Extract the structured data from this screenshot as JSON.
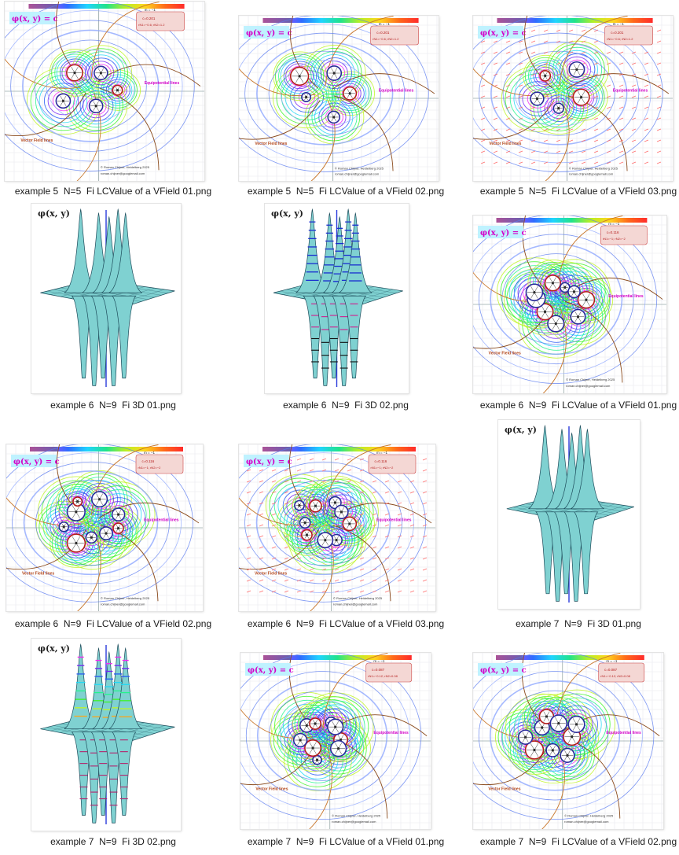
{
  "files": [
    {
      "name": "example 5  N=5  Fi LCValue of a VField 01.png",
      "kind": "field2d",
      "poles": 5,
      "variant": 1,
      "overlay": {
        "title": "φ(x, y) = c",
        "m_label": "m = −1",
        "c_label": "c=0.201",
        "c2_label": "rN1=−0.6; rN2=1.2",
        "vector_label": "Vector Field lines",
        "equi_label": "Equipotential lines",
        "credit": "© Roman Chijner, Heidelberg 2025",
        "email": "roman.chijner@googlemail.com"
      }
    },
    {
      "name": "example 5  N=5  Fi LCValue of a VField 02.png",
      "kind": "field2d",
      "poles": 5,
      "variant": 2,
      "overlay": {
        "title": "φ(x, y) = c",
        "m_label": "m = −1",
        "c_label": "c=0.201",
        "c2_label": "rN1=−0.6; rN2=1.2",
        "vector_label": "Vector Field lines",
        "equi_label": "Equipotential lines",
        "credit": "© Roman Chijner, Heidelberg 2025",
        "email": "roman.chijner@googlemail.com"
      }
    },
    {
      "name": "example 5  N=5  Fi LCValue of a VField 03.png",
      "kind": "field2d",
      "poles": 5,
      "variant": 3,
      "overlay": {
        "title": "φ(x, y) = c",
        "m_label": "m = −1",
        "c_label": "c=0.201",
        "c2_label": "rN1=−0.6; rN2=1.2",
        "vector_label": "Vector Field lines",
        "equi_label": "Equipotential lines",
        "credit": "© Roman Chijner, Heidelberg 2025",
        "email": "roman.chijner@googlemail.com"
      }
    },
    {
      "name": "example 6  N=9  Fi 3D 01.png",
      "kind": "surface3d",
      "variant": 1,
      "overlay": {
        "title": "φ(x, y)"
      }
    },
    {
      "name": "example 6  N=9  Fi 3D 02.png",
      "kind": "surface3d",
      "variant": 2,
      "overlay": {
        "title": "φ(x, y)"
      }
    },
    {
      "name": "example 6  N=9  Fi LCValue of a VField 01.png",
      "kind": "field2d",
      "poles": 9,
      "variant": 1,
      "overlay": {
        "title": "φ(x, y) = c",
        "m_label": "m = −1",
        "c_label": "c=0.116",
        "c2_label": "rN1=−1; rN2=−2",
        "vector_label": "Vector Field lines",
        "equi_label": "Equipotential lines",
        "credit": "© Roman Chijner, Heidelberg 2025",
        "email": "roman.chijner@googlemail.com"
      }
    },
    {
      "name": "example 6  N=9  Fi LCValue of a VField 02.png",
      "kind": "field2d",
      "poles": 9,
      "variant": 2,
      "overlay": {
        "title": "φ(x, y) = c",
        "m_label": "m = −1",
        "c_label": "c=0.116",
        "c2_label": "rN1=−1; rN2=−2",
        "vector_label": "Vector Field lines",
        "equi_label": "Equipotential lines",
        "credit": "© Roman Chijner, Heidelberg 2025",
        "email": "roman.chijner@googlemail.com"
      }
    },
    {
      "name": "example 6  N=9  Fi LCValue of a VField 03.png",
      "kind": "field2d",
      "poles": 9,
      "variant": 3,
      "overlay": {
        "title": "φ(x, y) = c",
        "m_label": "m = −1",
        "c_label": "c=0.116",
        "c2_label": "rN1=−1; rN2=−2",
        "vector_label": "Vector Field lines",
        "equi_label": "Equipotential lines",
        "credit": "© Roman Chijner, Heidelberg 2025",
        "email": "roman.chijner@googlemail.com"
      }
    },
    {
      "name": "example 7  N=9  Fi 3D 01.png",
      "kind": "surface3d",
      "variant": 3,
      "overlay": {
        "title": "φ(x, y)"
      }
    },
    {
      "name": "example 7  N=9  Fi 3D 02.png",
      "kind": "surface3d",
      "variant": 4,
      "overlay": {
        "title": "φ(x, y)"
      }
    },
    {
      "name": "example 7  N=9  Fi LCValue of a VField 01.png",
      "kind": "field2d",
      "poles": 9,
      "variant": 4,
      "overlay": {
        "title": "φ(x, y) = c",
        "m_label": "m = −1",
        "c_label": "c=0.087",
        "c2_label": "rN1=−0.12; rN2=0.08",
        "vector_label": "Vector Field lines",
        "equi_label": "Equipotential lines",
        "credit": "© Roman Chijner, Heidelberg 2025",
        "email": "roman.chijner@googlemail.com"
      }
    },
    {
      "name": "example 7  N=9  Fi LCValue of a VField 02.png",
      "kind": "field2d",
      "poles": 9,
      "variant": 5,
      "overlay": {
        "title": "φ(x, y) = c",
        "m_label": "m = −1",
        "c_label": "c=0.087",
        "c2_label": "rN1=−0.12; rN2=0.08",
        "vector_label": "Vector Field lines",
        "equi_label": "Equipotential lines",
        "credit": "© Roman Chijner, Heidelberg 2025",
        "email": "roman.chijner@googlemail.com"
      }
    }
  ],
  "colors": {
    "caption_text": "#1a1a1a",
    "thumb_border": "#e4e4e4",
    "surface_fill": "#7fd1d1",
    "surface_line": "#1c4b5a",
    "label_magenta": "#d400c8",
    "label_brown": "#b2461a",
    "title_box": "#bff2ff",
    "info_box": "#f4d7d4"
  }
}
